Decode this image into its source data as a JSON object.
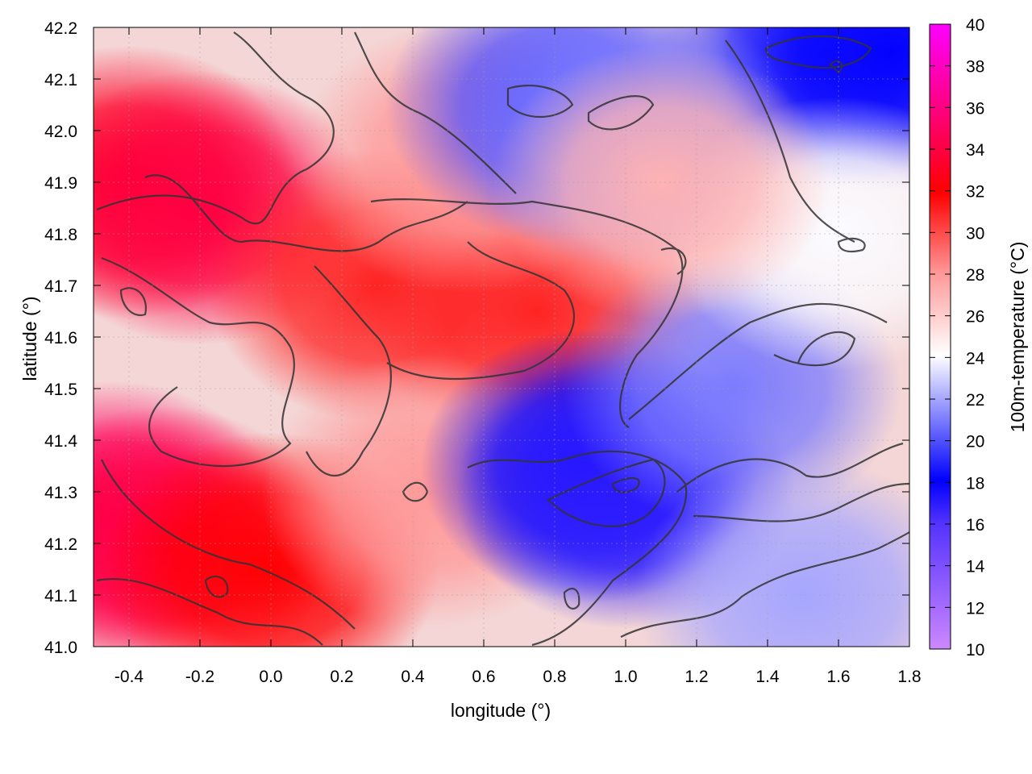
{
  "chart_data": {
    "type": "heatmap",
    "title": "",
    "xlabel": "longitude (°)",
    "ylabel": "latitude (°)",
    "colorbar_label": "100m-temperature (°C)",
    "xlim": [
      -0.5,
      1.8
    ],
    "ylim": [
      41.0,
      42.2
    ],
    "x_ticks": [
      "-0.4",
      "-0.2",
      "0.0",
      "0.2",
      "0.4",
      "0.6",
      "0.8",
      "1.0",
      "1.2",
      "1.4",
      "1.6",
      "1.8"
    ],
    "y_ticks": [
      "41.0",
      "41.1",
      "41.2",
      "41.3",
      "41.4",
      "41.5",
      "41.6",
      "41.7",
      "41.8",
      "41.9",
      "42.0",
      "42.1",
      "42.2"
    ],
    "colorbar_range": [
      10,
      40
    ],
    "colorbar_ticks": [
      "10",
      "12",
      "14",
      "16",
      "18",
      "20",
      "22",
      "24",
      "26",
      "28",
      "30",
      "32",
      "34",
      "36",
      "38",
      "40"
    ],
    "grid": true,
    "contours": true,
    "colormap": [
      "#cc88ff",
      "#0000ff",
      "#ffffff",
      "#ff0000",
      "#ff00ff"
    ],
    "regions": [
      {
        "lon": -0.4,
        "lat": 41.9,
        "temp": 33
      },
      {
        "lon": -0.2,
        "lat": 41.85,
        "temp": 34
      },
      {
        "lon": -0.45,
        "lat": 41.25,
        "temp": 35
      },
      {
        "lon": -0.3,
        "lat": 41.2,
        "temp": 34
      },
      {
        "lon": 0.0,
        "lat": 41.15,
        "temp": 32
      },
      {
        "lon": 0.3,
        "lat": 41.7,
        "temp": 31
      },
      {
        "lon": 0.75,
        "lat": 41.65,
        "temp": 31
      },
      {
        "lon": 0.55,
        "lat": 41.95,
        "temp": 28
      },
      {
        "lon": 0.45,
        "lat": 41.3,
        "temp": 28
      },
      {
        "lon": 0.9,
        "lat": 41.35,
        "temp": 18
      },
      {
        "lon": 1.0,
        "lat": 41.3,
        "temp": 17
      },
      {
        "lon": 1.3,
        "lat": 41.5,
        "temp": 21
      },
      {
        "lon": 1.5,
        "lat": 41.1,
        "temp": 22
      },
      {
        "lon": 1.55,
        "lat": 42.15,
        "temp": 19
      },
      {
        "lon": 1.75,
        "lat": 42.15,
        "temp": 18
      },
      {
        "lon": 0.8,
        "lat": 42.05,
        "temp": 20
      },
      {
        "lon": 1.0,
        "lat": 42.0,
        "temp": 21
      },
      {
        "lon": 1.6,
        "lat": 41.8,
        "temp": 24
      },
      {
        "lon": 1.1,
        "lat": 41.9,
        "temp": 27
      }
    ]
  }
}
